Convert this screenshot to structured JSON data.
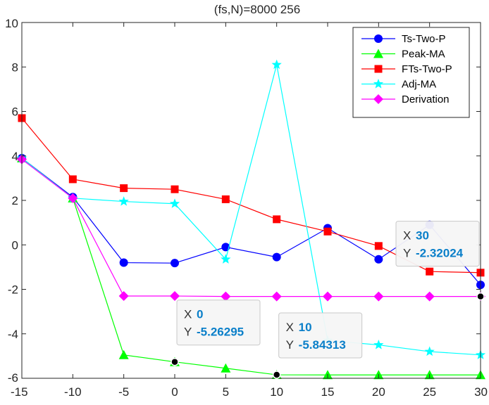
{
  "chart_data": {
    "type": "line",
    "title": "(fs,N)=8000   256",
    "xlabel": "",
    "ylabel": "",
    "xlim": [
      -15,
      30
    ],
    "ylim": [
      -6,
      10
    ],
    "xticks": [
      -15,
      -10,
      -5,
      0,
      5,
      10,
      15,
      20,
      25,
      30
    ],
    "yticks": [
      -6,
      -4,
      -2,
      0,
      2,
      4,
      6,
      8,
      10
    ],
    "x": [
      -15,
      -10,
      -5,
      0,
      5,
      10,
      15,
      20,
      25,
      30
    ],
    "legend_position": "top-right",
    "series": [
      {
        "name": "Ts-Two-P",
        "color": "#0000ff",
        "marker": "circle",
        "values": [
          3.9,
          2.15,
          -0.8,
          -0.82,
          -0.1,
          -0.55,
          0.75,
          -0.65,
          0.9,
          -1.8
        ]
      },
      {
        "name": "Peak-MA",
        "color": "#00ff00",
        "marker": "triangle",
        "values": [
          3.9,
          2.1,
          -4.95,
          -5.26295,
          -5.55,
          -5.84313,
          -5.85,
          -5.85,
          -5.85,
          -5.85
        ]
      },
      {
        "name": "FTs-Two-P",
        "color": "#ff0000",
        "marker": "square",
        "values": [
          5.7,
          2.95,
          2.55,
          2.5,
          2.05,
          1.15,
          0.6,
          -0.05,
          -1.2,
          -1.25
        ]
      },
      {
        "name": "Adj-MA",
        "color": "#00ffff",
        "marker": "star",
        "values": [
          3.9,
          2.1,
          1.95,
          1.85,
          -0.65,
          8.1,
          -4.3,
          -4.5,
          -4.8,
          -4.95
        ]
      },
      {
        "name": "Derivation",
        "color": "#ff00ff",
        "marker": "diamond",
        "values": [
          3.85,
          2.1,
          -2.3,
          -2.3,
          -2.32,
          -2.32,
          -2.32,
          -2.32,
          -2.32,
          -2.32024
        ]
      }
    ],
    "datatips": [
      {
        "x_label": "X",
        "x_value": "0",
        "y_label": "Y",
        "y_value": "-5.26295",
        "point": [
          0,
          -5.26295
        ]
      },
      {
        "x_label": "X",
        "x_value": "10",
        "y_label": "Y",
        "y_value": "-5.84313",
        "point": [
          10,
          -5.84313
        ]
      },
      {
        "x_label": "X",
        "x_value": "30",
        "y_label": "Y",
        "y_value": "-2.32024",
        "point": [
          30,
          -2.32024
        ]
      }
    ]
  }
}
